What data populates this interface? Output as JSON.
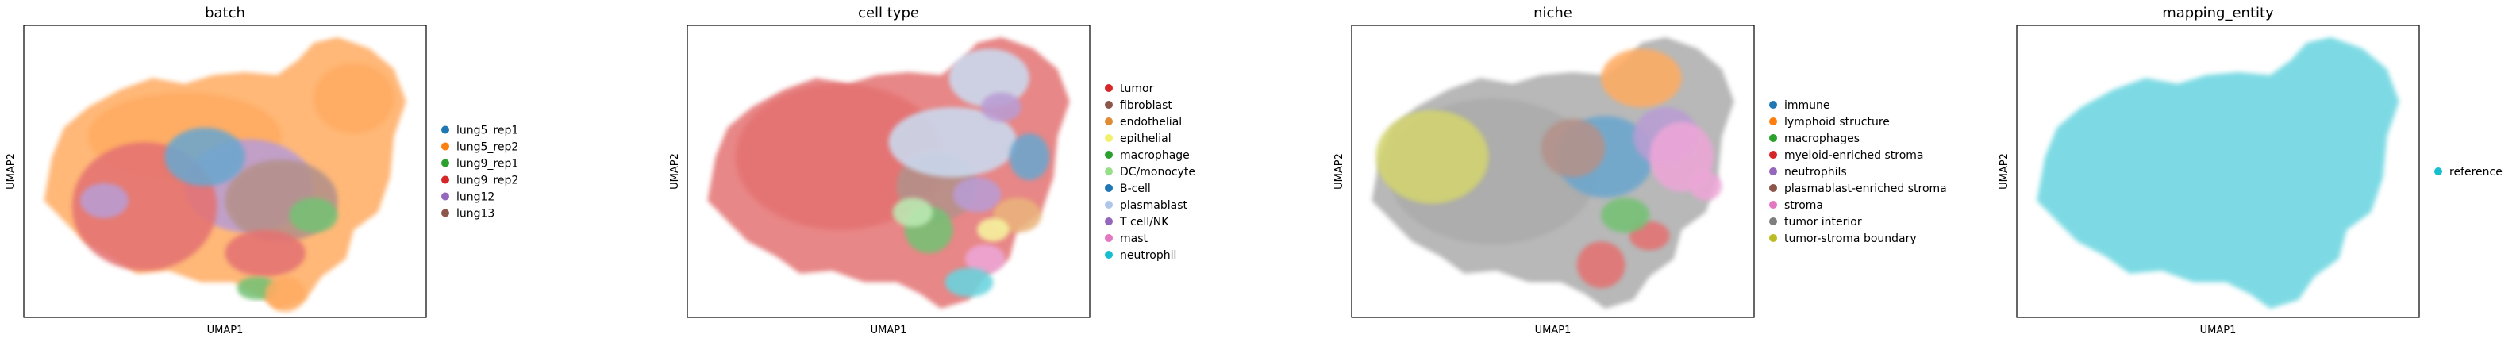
{
  "chart_data": [
    {
      "type": "scatter",
      "title": "batch",
      "xlabel": "UMAP1",
      "ylabel": "UMAP2",
      "legend": "right",
      "categories": [
        "lung5_rep1",
        "lung5_rep2",
        "lung9_rep1",
        "lung9_rep2",
        "lung12",
        "lung13"
      ],
      "colors": [
        "#1f77b4",
        "#ff7f0e",
        "#2ca02c",
        "#d62728",
        "#9467bd",
        "#8c564b"
      ],
      "regions": [
        {
          "name": "lung5_rep2",
          "role": "background"
        },
        {
          "name": "lung5_rep2",
          "x": 0.4,
          "y": 0.62,
          "rx": 0.24,
          "ry": 0.15
        },
        {
          "name": "lung12",
          "x": 0.56,
          "y": 0.45,
          "rx": 0.16,
          "ry": 0.16
        },
        {
          "name": "lung13",
          "x": 0.64,
          "y": 0.4,
          "rx": 0.14,
          "ry": 0.14
        },
        {
          "name": "lung9_rep2",
          "x": 0.3,
          "y": 0.38,
          "rx": 0.18,
          "ry": 0.22
        },
        {
          "name": "lung9_rep2",
          "x": 0.6,
          "y": 0.22,
          "rx": 0.1,
          "ry": 0.08
        },
        {
          "name": "lung9_rep1",
          "x": 0.72,
          "y": 0.35,
          "rx": 0.06,
          "ry": 0.06
        },
        {
          "name": "lung9_rep1",
          "x": 0.58,
          "y": 0.1,
          "rx": 0.05,
          "ry": 0.04
        },
        {
          "name": "lung5_rep1",
          "x": 0.45,
          "y": 0.55,
          "rx": 0.1,
          "ry": 0.1
        },
        {
          "name": "lung12",
          "x": 0.2,
          "y": 0.4,
          "rx": 0.06,
          "ry": 0.06
        },
        {
          "name": "lung5_rep2",
          "x": 0.65,
          "y": 0.08,
          "rx": 0.05,
          "ry": 0.06
        },
        {
          "name": "lung5_rep2",
          "x": 0.82,
          "y": 0.75,
          "rx": 0.1,
          "ry": 0.12
        }
      ]
    },
    {
      "type": "scatter",
      "title": "cell type",
      "xlabel": "UMAP1",
      "ylabel": "UMAP2",
      "legend": "right",
      "categories": [
        "tumor",
        "fibroblast",
        "endothelial",
        "epithelial",
        "macrophage",
        "DC/monocyte",
        "B-cell",
        "plasmablast",
        "T cell/NK",
        "mast",
        "neutrophil"
      ],
      "colors": [
        "#d62728",
        "#8c564b",
        "#e08b36",
        "#f2f06c",
        "#2ca02c",
        "#98df8a",
        "#1f77b4",
        "#aec7e8",
        "#9467bd",
        "#e377c2",
        "#17becf"
      ],
      "regions": [
        {
          "name": "tumor",
          "role": "background"
        },
        {
          "name": "tumor",
          "x": 0.38,
          "y": 0.55,
          "rx": 0.26,
          "ry": 0.25
        },
        {
          "name": "fibroblast",
          "x": 0.62,
          "y": 0.45,
          "rx": 0.1,
          "ry": 0.12
        },
        {
          "name": "plasmablast",
          "x": 0.66,
          "y": 0.6,
          "rx": 0.16,
          "ry": 0.12
        },
        {
          "name": "plasmablast",
          "x": 0.75,
          "y": 0.82,
          "rx": 0.1,
          "ry": 0.1
        },
        {
          "name": "macrophage",
          "x": 0.6,
          "y": 0.3,
          "rx": 0.06,
          "ry": 0.08
        },
        {
          "name": "DC/monocyte",
          "x": 0.56,
          "y": 0.36,
          "rx": 0.05,
          "ry": 0.05
        },
        {
          "name": "T cell/NK",
          "x": 0.72,
          "y": 0.42,
          "rx": 0.06,
          "ry": 0.06
        },
        {
          "name": "T cell/NK",
          "x": 0.78,
          "y": 0.72,
          "rx": 0.05,
          "ry": 0.05
        },
        {
          "name": "mast",
          "x": 0.74,
          "y": 0.2,
          "rx": 0.05,
          "ry": 0.05
        },
        {
          "name": "neutrophil",
          "x": 0.7,
          "y": 0.12,
          "rx": 0.06,
          "ry": 0.05
        },
        {
          "name": "endothelial",
          "x": 0.82,
          "y": 0.35,
          "rx": 0.06,
          "ry": 0.06
        },
        {
          "name": "epithelial",
          "x": 0.76,
          "y": 0.3,
          "rx": 0.04,
          "ry": 0.04
        },
        {
          "name": "B-cell",
          "x": 0.85,
          "y": 0.55,
          "rx": 0.05,
          "ry": 0.08
        }
      ]
    },
    {
      "type": "scatter",
      "title": "niche",
      "xlabel": "UMAP1",
      "ylabel": "UMAP2",
      "legend": "right",
      "categories": [
        "immune",
        "lymphoid structure",
        "macrophages",
        "myeloid-enriched stroma",
        "neutrophils",
        "plasmablast-enriched stroma",
        "stroma",
        "tumor interior",
        "tumor-stroma boundary"
      ],
      "colors": [
        "#1f77b4",
        "#ff7f0e",
        "#2ca02c",
        "#d62728",
        "#9467bd",
        "#8c564b",
        "#e377c2",
        "#7f7f7f",
        "#bcbd22"
      ],
      "regions": [
        {
          "name": "tumor interior",
          "role": "background"
        },
        {
          "name": "tumor interior",
          "x": 0.35,
          "y": 0.5,
          "rx": 0.26,
          "ry": 0.25
        },
        {
          "name": "tumor-stroma boundary",
          "x": 0.2,
          "y": 0.55,
          "rx": 0.14,
          "ry": 0.16
        },
        {
          "name": "immune",
          "x": 0.63,
          "y": 0.55,
          "rx": 0.12,
          "ry": 0.14
        },
        {
          "name": "plasmablast-enriched stroma",
          "x": 0.55,
          "y": 0.58,
          "rx": 0.08,
          "ry": 0.1
        },
        {
          "name": "neutrophils",
          "x": 0.78,
          "y": 0.62,
          "rx": 0.08,
          "ry": 0.1
        },
        {
          "name": "stroma",
          "x": 0.82,
          "y": 0.55,
          "rx": 0.08,
          "ry": 0.12
        },
        {
          "name": "lymphoid structure",
          "x": 0.72,
          "y": 0.82,
          "rx": 0.1,
          "ry": 0.1
        },
        {
          "name": "myeloid-enriched stroma",
          "x": 0.62,
          "y": 0.18,
          "rx": 0.06,
          "ry": 0.08
        },
        {
          "name": "myeloid-enriched stroma",
          "x": 0.74,
          "y": 0.28,
          "rx": 0.05,
          "ry": 0.05
        },
        {
          "name": "macrophages",
          "x": 0.68,
          "y": 0.35,
          "rx": 0.06,
          "ry": 0.06
        },
        {
          "name": "stroma",
          "x": 0.88,
          "y": 0.45,
          "rx": 0.04,
          "ry": 0.05
        }
      ]
    },
    {
      "type": "scatter",
      "title": "mapping_entity",
      "xlabel": "UMAP1",
      "ylabel": "UMAP2",
      "legend": "right",
      "categories": [
        "reference"
      ],
      "colors": [
        "#17becf"
      ],
      "regions": [
        {
          "name": "reference",
          "role": "background"
        }
      ]
    }
  ]
}
